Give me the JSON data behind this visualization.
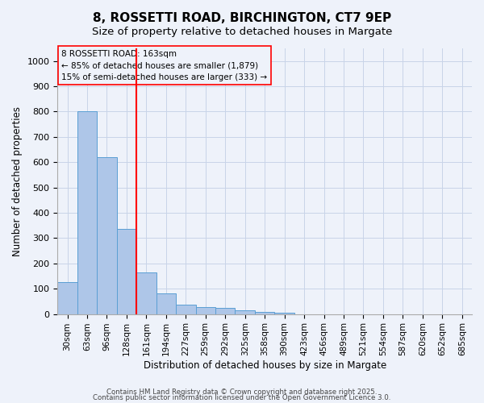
{
  "title_line1": "8, ROSSETTI ROAD, BIRCHINGTON, CT7 9EP",
  "title_line2": "Size of property relative to detached houses in Margate",
  "xlabel": "Distribution of detached houses by size in Margate",
  "ylabel": "Number of detached properties",
  "bar_values": [
    125,
    800,
    620,
    335,
    165,
    82,
    38,
    27,
    23,
    15,
    8,
    5,
    0,
    0,
    0,
    0,
    0,
    0,
    0,
    0,
    0
  ],
  "categories": [
    "30sqm",
    "63sqm",
    "96sqm",
    "128sqm",
    "161sqm",
    "194sqm",
    "227sqm",
    "259sqm",
    "292sqm",
    "325sqm",
    "358sqm",
    "390sqm",
    "423sqm",
    "456sqm",
    "489sqm",
    "521sqm",
    "554sqm",
    "587sqm",
    "620sqm",
    "652sqm",
    "685sqm"
  ],
  "bar_color": "#aec6e8",
  "bar_edge_color": "#5a9fd4",
  "vline_color": "red",
  "vline_index": 3.5,
  "annotation_text": "8 ROSSETTI ROAD: 163sqm\n← 85% of detached houses are smaller (1,879)\n15% of semi-detached houses are larger (333) →",
  "ylim": [
    0,
    1050
  ],
  "yticks": [
    0,
    100,
    200,
    300,
    400,
    500,
    600,
    700,
    800,
    900,
    1000
  ],
  "grid_color": "#c8d4e8",
  "bg_color": "#eef2fa",
  "footer_line1": "Contains HM Land Registry data © Crown copyright and database right 2025.",
  "footer_line2": "Contains public sector information licensed under the Open Government Licence 3.0."
}
